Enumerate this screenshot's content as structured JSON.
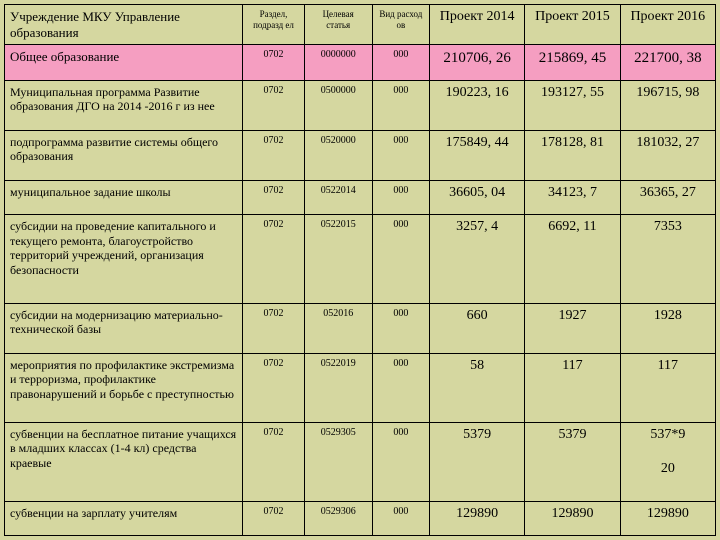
{
  "columns": [
    "Учреждение  МКУ Управление образования",
    "Раздел, подразд ел",
    "Целевая статья",
    "Вид расход ов",
    "Проект 2014",
    "Проект 2015",
    "Проект 2016"
  ],
  "rows": [
    {
      "highlight": true,
      "name": "Общее образование",
      "sec": "0702",
      "art": "0000000",
      "type": "000",
      "p14": "210706, 26",
      "p15": "215869, 45",
      "p16": "221700, 38"
    },
    {
      "highlight": false,
      "name": "Муниципальная программа Развитие образования ДГО на 2014 -2016 г из нее",
      "sec": "0702",
      "art": "0500000",
      "type": "000",
      "p14": "190223, 16",
      "p15": "193127, 55",
      "p16": "196715, 98"
    },
    {
      "highlight": false,
      "name": "подпрограмма развитие системы общего образования",
      "sec": "0702",
      "art": "0520000",
      "type": "000",
      "p14": "175849, 44",
      "p15": "178128, 81",
      "p16": "181032, 27"
    },
    {
      "highlight": false,
      "name": "муниципальное задание школы",
      "sec": "0702",
      "art": "0522014",
      "type": "000",
      "p14": "36605, 04",
      "p15": "34123, 7",
      "p16": "36365, 27"
    },
    {
      "highlight": false,
      "name": "субсидии на проведение капитального и текущего ремонта, благоустройство территорий учреждений, организация безопасности",
      "sec": "0702",
      "art": "0522015",
      "type": "000",
      "p14": "3257, 4",
      "p15": "6692, 11",
      "p16": "7353"
    },
    {
      "highlight": false,
      "name": "субсидии на модернизацию материально-технической базы",
      "sec": "0702",
      "art": "052016",
      "type": "000",
      "p14": "660",
      "p15": "1927",
      "p16": "1928"
    },
    {
      "highlight": false,
      "name": "мероприятия по профилактике экстремизма и терроризма, профилактике правонарушений и борьбе с преступностью",
      "sec": "0702",
      "art": "0522019",
      "type": "000",
      "p14": "58",
      "p15": "117",
      "p16": "117"
    },
    {
      "highlight": false,
      "name": "субвенции на бесплатное питание учащихся в младших классах (1-4 кл) средства краевые",
      "sec": "0702",
      "art": "0529305",
      "type": "000",
      "p14": "5379",
      "p15": "5379",
      "p16": "537*9\n\n20"
    },
    {
      "highlight": false,
      "name": "субвенции на зарплату учителям",
      "sec": "0702",
      "art": "0529306",
      "type": "000",
      "p14": "129890",
      "p15": "129890",
      "p16": "129890"
    }
  ]
}
